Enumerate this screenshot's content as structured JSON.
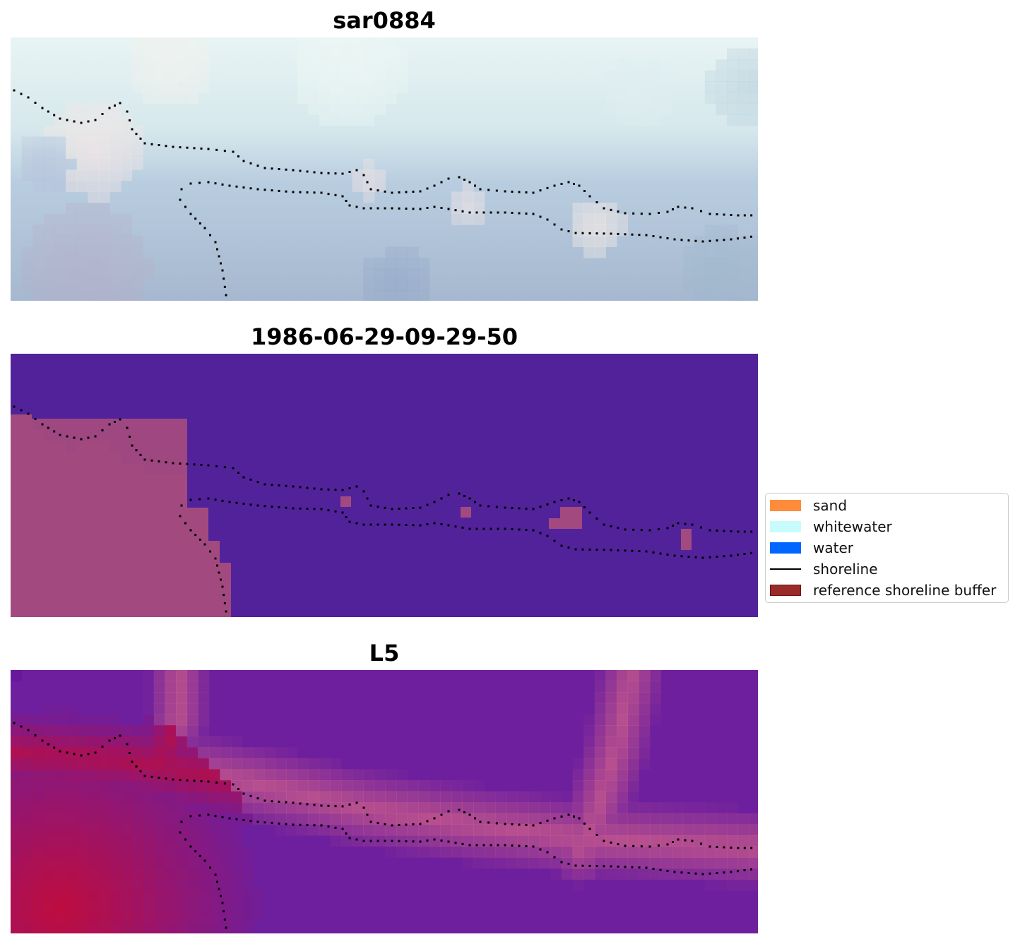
{
  "panels": [
    {
      "title": "sar0884",
      "kind": "rgb"
    },
    {
      "title": "1986-06-29-09-29-50",
      "kind": "classified"
    },
    {
      "title": "L5",
      "kind": "index"
    }
  ],
  "legend": {
    "items": [
      {
        "label": "sand",
        "color": "#ff8c3a",
        "type": "patch"
      },
      {
        "label": "whitewater",
        "color": "#c8fcfc",
        "type": "patch"
      },
      {
        "label": "water",
        "color": "#0066ff",
        "type": "patch"
      },
      {
        "label": "shoreline",
        "color": "#000000",
        "type": "line"
      },
      {
        "label": "reference shoreline buffer",
        "color": "#9b2a2a",
        "type": "patch"
      }
    ]
  },
  "colors": {
    "classified_background": "#52229a",
    "classified_buffer": "#a24a80",
    "index_low": "#6a1a9c",
    "index_high": "#c0062e"
  }
}
